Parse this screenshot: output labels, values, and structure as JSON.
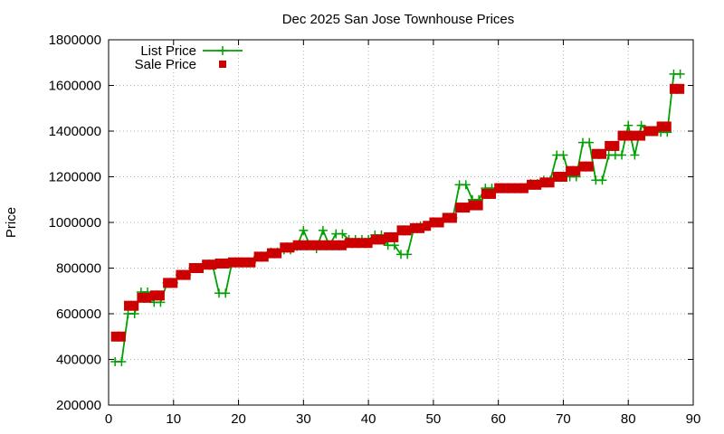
{
  "chart_data": {
    "type": "line",
    "title": "Dec 2025 San Jose Townhouse Prices",
    "xlabel": "",
    "ylabel": "Price",
    "xlim": [
      0,
      90
    ],
    "ylim": [
      200000,
      1800000
    ],
    "x_ticks": [
      0,
      10,
      20,
      30,
      40,
      50,
      60,
      70,
      80,
      90
    ],
    "y_ticks": [
      200000,
      400000,
      600000,
      800000,
      1000000,
      1200000,
      1400000,
      1600000,
      1800000
    ],
    "grid": true,
    "legend_position": "top-left",
    "series": [
      {
        "name": "List Price",
        "style": "line+cross",
        "color": "#00a000",
        "points": [
          [
            1,
            390000
          ],
          [
            2,
            390000
          ],
          [
            3,
            600000
          ],
          [
            4,
            600000
          ],
          [
            5,
            695000
          ],
          [
            6,
            695000
          ],
          [
            7,
            650000
          ],
          [
            8,
            650000
          ],
          [
            9,
            735000
          ],
          [
            10,
            735000
          ],
          [
            11,
            770000
          ],
          [
            12,
            770000
          ],
          [
            13,
            800000
          ],
          [
            14,
            800000
          ],
          [
            15,
            815000
          ],
          [
            16,
            815000
          ],
          [
            17,
            690000
          ],
          [
            18,
            690000
          ],
          [
            19,
            825000
          ],
          [
            20,
            825000
          ],
          [
            21,
            825000
          ],
          [
            22,
            825000
          ],
          [
            23,
            850000
          ],
          [
            24,
            850000
          ],
          [
            25,
            870000
          ],
          [
            26,
            870000
          ],
          [
            27,
            880000
          ],
          [
            28,
            880000
          ],
          [
            29,
            895000
          ],
          [
            30,
            965000
          ],
          [
            31,
            900000
          ],
          [
            32,
            885000
          ],
          [
            33,
            965000
          ],
          [
            34,
            900000
          ],
          [
            35,
            950000
          ],
          [
            36,
            950000
          ],
          [
            37,
            925000
          ],
          [
            38,
            925000
          ],
          [
            39,
            925000
          ],
          [
            40,
            925000
          ],
          [
            41,
            945000
          ],
          [
            42,
            945000
          ],
          [
            43,
            900000
          ],
          [
            44,
            900000
          ],
          [
            45,
            860000
          ],
          [
            46,
            860000
          ],
          [
            47,
            975000
          ],
          [
            48,
            985000
          ],
          [
            49,
            985000
          ],
          [
            50,
            1000000
          ],
          [
            51,
            1000000
          ],
          [
            52,
            1020000
          ],
          [
            53,
            1020000
          ],
          [
            54,
            1165000
          ],
          [
            55,
            1165000
          ],
          [
            56,
            1100000
          ],
          [
            57,
            1100000
          ],
          [
            58,
            1150000
          ],
          [
            59,
            1150000
          ],
          [
            60,
            1150000
          ],
          [
            61,
            1150000
          ],
          [
            62,
            1150000
          ],
          [
            63,
            1150000
          ],
          [
            64,
            1150000
          ],
          [
            65,
            1170000
          ],
          [
            66,
            1170000
          ],
          [
            67,
            1185000
          ],
          [
            68,
            1185000
          ],
          [
            69,
            1295000
          ],
          [
            70,
            1295000
          ],
          [
            71,
            1200000
          ],
          [
            72,
            1200000
          ],
          [
            73,
            1350000
          ],
          [
            74,
            1350000
          ],
          [
            75,
            1185000
          ],
          [
            76,
            1185000
          ],
          [
            77,
            1295000
          ],
          [
            78,
            1295000
          ],
          [
            79,
            1295000
          ],
          [
            80,
            1425000
          ],
          [
            81,
            1295000
          ],
          [
            82,
            1425000
          ],
          [
            83,
            1400000
          ],
          [
            84,
            1400000
          ],
          [
            85,
            1395000
          ],
          [
            86,
            1395000
          ],
          [
            87,
            1650000
          ],
          [
            88,
            1650000
          ]
        ]
      },
      {
        "name": "Sale Price",
        "style": "square",
        "color": "#cc0000",
        "points": [
          [
            1,
            500000
          ],
          [
            2,
            500000
          ],
          [
            3,
            635000
          ],
          [
            4,
            635000
          ],
          [
            5,
            670000
          ],
          [
            6,
            670000
          ],
          [
            7,
            680000
          ],
          [
            8,
            680000
          ],
          [
            9,
            735000
          ],
          [
            10,
            735000
          ],
          [
            11,
            770000
          ],
          [
            12,
            770000
          ],
          [
            13,
            800000
          ],
          [
            14,
            800000
          ],
          [
            15,
            815000
          ],
          [
            16,
            815000
          ],
          [
            17,
            820000
          ],
          [
            18,
            820000
          ],
          [
            19,
            825000
          ],
          [
            20,
            825000
          ],
          [
            21,
            825000
          ],
          [
            22,
            825000
          ],
          [
            23,
            850000
          ],
          [
            24,
            850000
          ],
          [
            25,
            865000
          ],
          [
            26,
            865000
          ],
          [
            27,
            890000
          ],
          [
            28,
            890000
          ],
          [
            29,
            900000
          ],
          [
            30,
            900000
          ],
          [
            31,
            900000
          ],
          [
            32,
            900000
          ],
          [
            33,
            900000
          ],
          [
            34,
            900000
          ],
          [
            35,
            900000
          ],
          [
            36,
            900000
          ],
          [
            37,
            910000
          ],
          [
            38,
            910000
          ],
          [
            39,
            910000
          ],
          [
            40,
            910000
          ],
          [
            41,
            925000
          ],
          [
            42,
            925000
          ],
          [
            43,
            935000
          ],
          [
            44,
            935000
          ],
          [
            45,
            965000
          ],
          [
            46,
            965000
          ],
          [
            47,
            975000
          ],
          [
            48,
            975000
          ],
          [
            49,
            985000
          ],
          [
            50,
            1000000
          ],
          [
            51,
            1000000
          ],
          [
            52,
            1020000
          ],
          [
            53,
            1020000
          ],
          [
            54,
            1065000
          ],
          [
            55,
            1065000
          ],
          [
            56,
            1075000
          ],
          [
            57,
            1075000
          ],
          [
            58,
            1125000
          ],
          [
            59,
            1125000
          ],
          [
            60,
            1150000
          ],
          [
            61,
            1150000
          ],
          [
            62,
            1150000
          ],
          [
            63,
            1150000
          ],
          [
            64,
            1150000
          ],
          [
            65,
            1165000
          ],
          [
            66,
            1165000
          ],
          [
            67,
            1175000
          ],
          [
            68,
            1175000
          ],
          [
            69,
            1200000
          ],
          [
            70,
            1200000
          ],
          [
            71,
            1225000
          ],
          [
            72,
            1225000
          ],
          [
            73,
            1245000
          ],
          [
            74,
            1245000
          ],
          [
            75,
            1300000
          ],
          [
            76,
            1300000
          ],
          [
            77,
            1335000
          ],
          [
            78,
            1335000
          ],
          [
            79,
            1380000
          ],
          [
            80,
            1380000
          ],
          [
            81,
            1380000
          ],
          [
            82,
            1380000
          ],
          [
            83,
            1400000
          ],
          [
            84,
            1400000
          ],
          [
            85,
            1420000
          ],
          [
            86,
            1420000
          ],
          [
            87,
            1585000
          ],
          [
            88,
            1585000
          ]
        ]
      }
    ]
  }
}
